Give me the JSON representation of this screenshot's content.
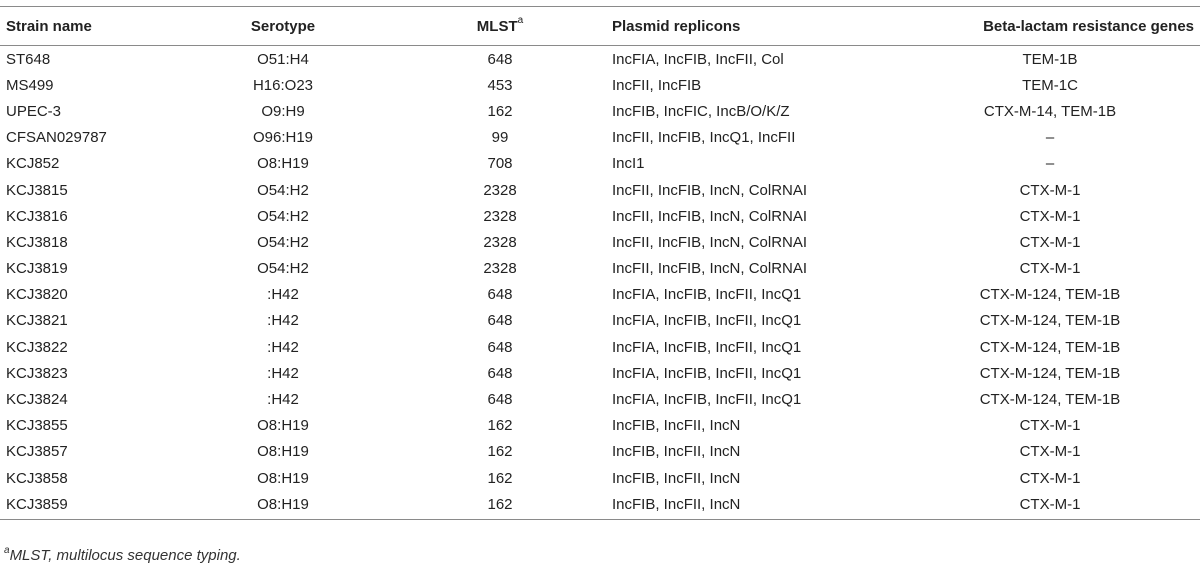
{
  "table": {
    "headers": {
      "strain": "Strain name",
      "serotype": "Serotype",
      "mlst": "MLST",
      "mlst_sup": "a",
      "plasmid": "Plasmid replicons",
      "beta": "Beta-lactam resistance genes"
    },
    "rows": [
      {
        "strain": "ST648",
        "serotype": "O51:H4",
        "mlst": "648",
        "plasmid": "IncFIA, IncFIB, IncFII, Col",
        "beta": "TEM-1B"
      },
      {
        "strain": "MS499",
        "serotype": "H16:O23",
        "mlst": "453",
        "plasmid": "IncFII, IncFIB",
        "beta": "TEM-1C"
      },
      {
        "strain": "UPEC-3",
        "serotype": "O9:H9",
        "mlst": "162",
        "plasmid": "IncFIB, IncFIC, IncB/O/K/Z",
        "beta": "CTX-M-14, TEM-1B"
      },
      {
        "strain": "CFSAN029787",
        "serotype": "O96:H19",
        "mlst": "99",
        "plasmid": "IncFII, IncFIB, IncQ1, IncFII",
        "beta": "–"
      },
      {
        "strain": "KCJ852",
        "serotype": "O8:H19",
        "mlst": "708",
        "plasmid": "IncI1",
        "beta": "–"
      },
      {
        "strain": "KCJ3815",
        "serotype": "O54:H2",
        "mlst": "2328",
        "plasmid": "IncFII, IncFIB, IncN, ColRNAI",
        "beta": "CTX-M-1"
      },
      {
        "strain": "KCJ3816",
        "serotype": "O54:H2",
        "mlst": "2328",
        "plasmid": "IncFII, IncFIB, IncN, ColRNAI",
        "beta": "CTX-M-1"
      },
      {
        "strain": "KCJ3818",
        "serotype": "O54:H2",
        "mlst": "2328",
        "plasmid": "IncFII, IncFIB, IncN, ColRNAI",
        "beta": "CTX-M-1"
      },
      {
        "strain": "KCJ3819",
        "serotype": "O54:H2",
        "mlst": "2328",
        "plasmid": "IncFII, IncFIB, IncN, ColRNAI",
        "beta": "CTX-M-1"
      },
      {
        "strain": "KCJ3820",
        "serotype": ":H42",
        "mlst": "648",
        "plasmid": "IncFIA, IncFIB, IncFII, IncQ1",
        "beta": "CTX-M-124, TEM-1B"
      },
      {
        "strain": "KCJ3821",
        "serotype": ":H42",
        "mlst": "648",
        "plasmid": "IncFIA, IncFIB, IncFII, IncQ1",
        "beta": "CTX-M-124, TEM-1B"
      },
      {
        "strain": "KCJ3822",
        "serotype": ":H42",
        "mlst": "648",
        "plasmid": "IncFIA, IncFIB, IncFII, IncQ1",
        "beta": "CTX-M-124, TEM-1B"
      },
      {
        "strain": "KCJ3823",
        "serotype": ":H42",
        "mlst": "648",
        "plasmid": "IncFIA, IncFIB, IncFII, IncQ1",
        "beta": "CTX-M-124, TEM-1B"
      },
      {
        "strain": "KCJ3824",
        "serotype": ":H42",
        "mlst": "648",
        "plasmid": "IncFIA, IncFIB, IncFII, IncQ1",
        "beta": "CTX-M-124, TEM-1B"
      },
      {
        "strain": "KCJ3855",
        "serotype": "O8:H19",
        "mlst": "162",
        "plasmid": "IncFIB, IncFII, IncN",
        "beta": "CTX-M-1"
      },
      {
        "strain": "KCJ3857",
        "serotype": "O8:H19",
        "mlst": "162",
        "plasmid": "IncFIB, IncFII, IncN",
        "beta": "CTX-M-1"
      },
      {
        "strain": "KCJ3858",
        "serotype": "O8:H19",
        "mlst": "162",
        "plasmid": "IncFIB, IncFII, IncN",
        "beta": "CTX-M-1"
      },
      {
        "strain": "KCJ3859",
        "serotype": "O8:H19",
        "mlst": "162",
        "plasmid": "IncFIB, IncFII, IncN",
        "beta": "CTX-M-1"
      }
    ]
  },
  "footnote": {
    "marker": "a",
    "text": "MLST, multilocus sequence typing."
  }
}
